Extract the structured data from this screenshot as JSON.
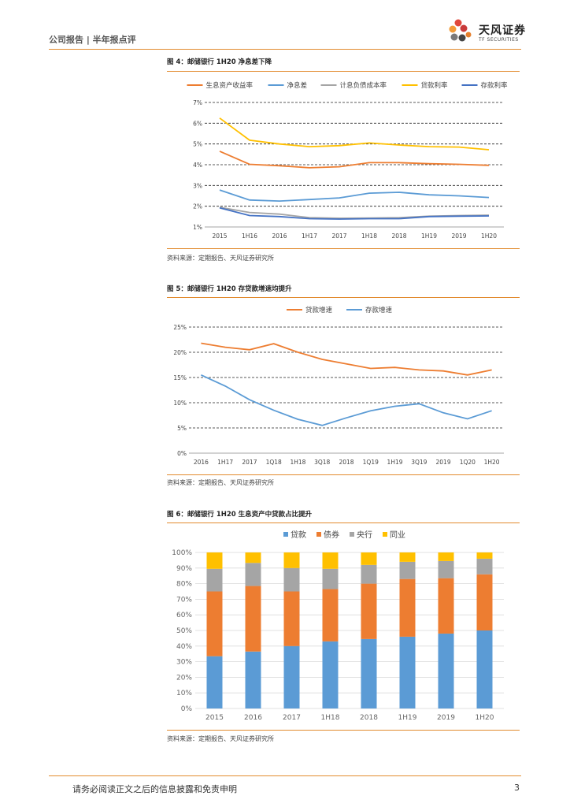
{
  "header": {
    "left": "公司报告 | 半年报点评",
    "brand": "天风证券",
    "brand_en": "TF SECURITIES"
  },
  "fig4": {
    "title": "图 4：邮储银行 1H20 净息差下降",
    "source": "资料来源：定期报告、天风证券研究所"
  },
  "fig5": {
    "title": "图 5：邮储银行 1H20 存贷款增速均提升",
    "source": "资料来源：定期报告、天风证券研究所"
  },
  "fig6": {
    "title": "图 6：邮储银行 1H20 生息资产中贷款占比提升",
    "source": "资料来源：定期报告、天风证券研究所"
  },
  "footer": {
    "disclaimer": "请务必阅读正文之后的信息披露和免责申明",
    "page": "3"
  },
  "chart_data": [
    {
      "type": "line",
      "categories": [
        "2015",
        "1H16",
        "2016",
        "1H17",
        "2017",
        "1H18",
        "2018",
        "1H19",
        "2019",
        "1H20"
      ],
      "ylim": [
        1,
        7
      ],
      "yticks": [
        "1%",
        "2%",
        "3%",
        "4%",
        "5%",
        "6%",
        "7%"
      ],
      "series": [
        {
          "name": "生息资产收益率",
          "color": "#ED7D31",
          "values": [
            4.65,
            4.02,
            3.95,
            3.85,
            3.9,
            4.1,
            4.1,
            4.05,
            4.02,
            3.97
          ]
        },
        {
          "name": "净息差",
          "color": "#5B9BD5",
          "values": [
            2.78,
            2.3,
            2.25,
            2.32,
            2.4,
            2.63,
            2.67,
            2.55,
            2.5,
            2.42
          ]
        },
        {
          "name": "计息负债成本率",
          "color": "#A5A5A5",
          "values": [
            1.95,
            1.7,
            1.62,
            1.45,
            1.42,
            1.43,
            1.45,
            1.52,
            1.55,
            1.57
          ]
        },
        {
          "name": "贷款利率",
          "color": "#FFC000",
          "values": [
            6.25,
            5.18,
            5.0,
            4.87,
            4.92,
            5.05,
            4.95,
            4.87,
            4.85,
            4.72
          ]
        },
        {
          "name": "存款利率",
          "color": "#4472C4",
          "values": [
            1.92,
            1.55,
            1.5,
            1.4,
            1.38,
            1.4,
            1.4,
            1.5,
            1.52,
            1.53
          ]
        }
      ]
    },
    {
      "type": "line",
      "categories": [
        "2016",
        "1H17",
        "2017",
        "1Q18",
        "1H18",
        "3Q18",
        "2018",
        "1Q19",
        "1H19",
        "3Q19",
        "2019",
        "1Q20",
        "1H20"
      ],
      "ylim": [
        0,
        25
      ],
      "yticks": [
        "0%",
        "5%",
        "10%",
        "15%",
        "20%",
        "25%"
      ],
      "series": [
        {
          "name": "贷款增速",
          "color": "#ED7D31",
          "values": [
            21.8,
            21.0,
            20.5,
            21.7,
            20.0,
            18.6,
            17.7,
            16.8,
            17.0,
            16.5,
            16.3,
            15.5,
            16.5
          ]
        },
        {
          "name": "存款增速",
          "color": "#5B9BD5",
          "values": [
            15.5,
            13.3,
            10.6,
            8.5,
            6.7,
            5.5,
            7.0,
            8.4,
            9.3,
            9.8,
            8.0,
            6.8,
            8.4
          ]
        }
      ]
    },
    {
      "type": "bar",
      "stacked": true,
      "categories": [
        "2015",
        "2016",
        "2017",
        "1H18",
        "2018",
        "1H19",
        "2019",
        "1H20"
      ],
      "ylim": [
        0,
        100
      ],
      "yticks": [
        "0%",
        "10%",
        "20%",
        "30%",
        "40%",
        "50%",
        "60%",
        "70%",
        "80%",
        "90%",
        "100%"
      ],
      "series": [
        {
          "name": "贷款",
          "color": "#5B9BD5",
          "values": [
            33.5,
            36.5,
            40.0,
            43.0,
            44.5,
            46.0,
            48.0,
            50.0
          ]
        },
        {
          "name": "债券",
          "color": "#ED7D31",
          "values": [
            41.5,
            42.0,
            35.0,
            33.5,
            35.5,
            37.0,
            35.5,
            36.0
          ]
        },
        {
          "name": "央行",
          "color": "#A5A5A5",
          "values": [
            14.5,
            14.8,
            15.0,
            13.0,
            12.0,
            11.0,
            11.0,
            10.0
          ]
        },
        {
          "name": "同业",
          "color": "#FFC000",
          "values": [
            10.5,
            6.7,
            10.0,
            10.5,
            8.0,
            6.0,
            5.5,
            4.0
          ]
        }
      ]
    }
  ]
}
